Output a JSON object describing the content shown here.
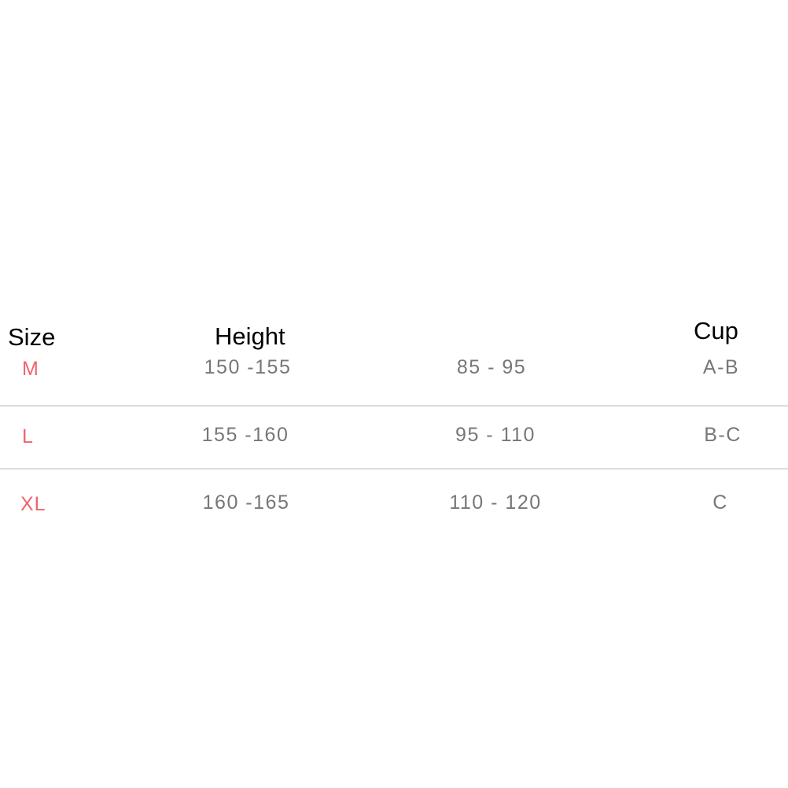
{
  "table": {
    "headers": [
      "Size",
      "Height",
      "",
      "Cup"
    ],
    "rows": [
      {
        "size": "M",
        "height": "150 -155",
        "col3": "85 - 95",
        "cup": "A-B"
      },
      {
        "size": "L",
        "height": "155 -160",
        "col3": "95 - 110",
        "cup": "B-C"
      },
      {
        "size": "XL",
        "height": "160 -165",
        "col3": "110 - 120",
        "cup": "C"
      }
    ],
    "colors": {
      "size": "#f0646e",
      "value": "#777777",
      "divider": "#dcdcdc"
    }
  }
}
